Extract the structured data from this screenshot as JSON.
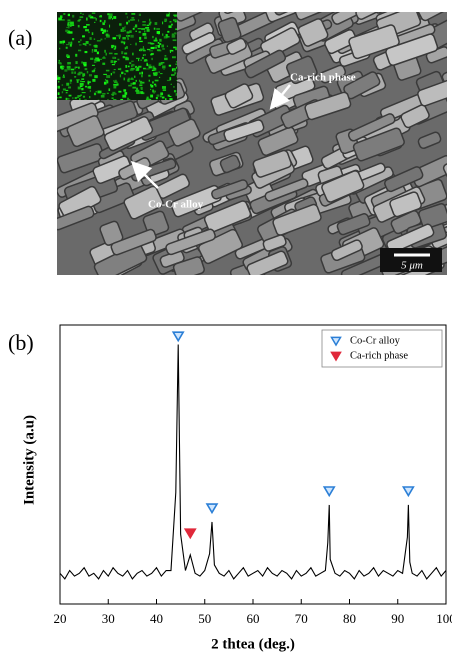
{
  "figure": {
    "panel_a": {
      "label": "(a)",
      "annotations": [
        "Ca-rich phase",
        "Co-Cr alloy"
      ],
      "scale_bar": "5 μm"
    }
  },
  "chart_data": {
    "type": "line",
    "panel_label": "(b)",
    "x_label": "2 thtea (deg.)",
    "y_label": "Intensity (a.u)",
    "xlim": [
      20,
      100
    ],
    "xticks": [
      20,
      30,
      40,
      50,
      60,
      70,
      80,
      90,
      100
    ],
    "ylim": [
      0,
      100
    ],
    "series": [
      {
        "color": "#000000",
        "x": [
          20,
          21,
          22,
          23,
          24,
          25,
          26,
          27,
          28,
          29,
          30,
          31,
          32,
          33,
          34,
          35,
          36,
          37,
          38,
          39,
          40,
          41,
          42,
          43,
          44,
          44.5,
          45,
          46,
          47,
          48,
          49,
          50,
          51,
          51.5,
          52,
          53,
          54,
          55,
          56,
          57,
          58,
          59,
          60,
          61,
          62,
          63,
          64,
          65,
          66,
          67,
          68,
          69,
          70,
          71,
          72,
          73,
          74,
          75,
          75.5,
          75.8,
          76,
          77,
          78,
          79,
          80,
          81,
          82,
          83,
          84,
          85,
          86,
          87,
          88,
          89,
          90,
          91,
          92,
          92.2,
          92.5,
          93,
          94,
          95,
          96,
          97,
          98,
          99,
          100
        ],
        "values": [
          11,
          9,
          12,
          10,
          11,
          13,
          10,
          11,
          9,
          12,
          10,
          13,
          11,
          10,
          12,
          9,
          11,
          12,
          10,
          11,
          13,
          10,
          12,
          12,
          40,
          93,
          25,
          12,
          17.6,
          11,
          10,
          12,
          18,
          29.4,
          14,
          11,
          10,
          12,
          9,
          11,
          13,
          10,
          11,
          12,
          10,
          13,
          11,
          10,
          12,
          11,
          9,
          12,
          10,
          11,
          13,
          10,
          11,
          12,
          22,
          35.5,
          16,
          11,
          10,
          12,
          11,
          9,
          12,
          10,
          11,
          13,
          10,
          12,
          11,
          10,
          12,
          11,
          24,
          35.5,
          15,
          11,
          10,
          12,
          9,
          11,
          13,
          10,
          12
        ]
      }
    ],
    "markers": [
      {
        "name": "Co-Cr alloy",
        "color": "#2b7fd6",
        "x": [
          44.5,
          51.5,
          75.8,
          92.2
        ],
        "values": [
          96,
          34.4,
          40.5,
          40.5
        ]
      },
      {
        "name": "Ca-rich phase",
        "color": "#e0283a",
        "x": [
          47
        ],
        "values": [
          25.4
        ]
      }
    ],
    "legend": "upper right"
  }
}
